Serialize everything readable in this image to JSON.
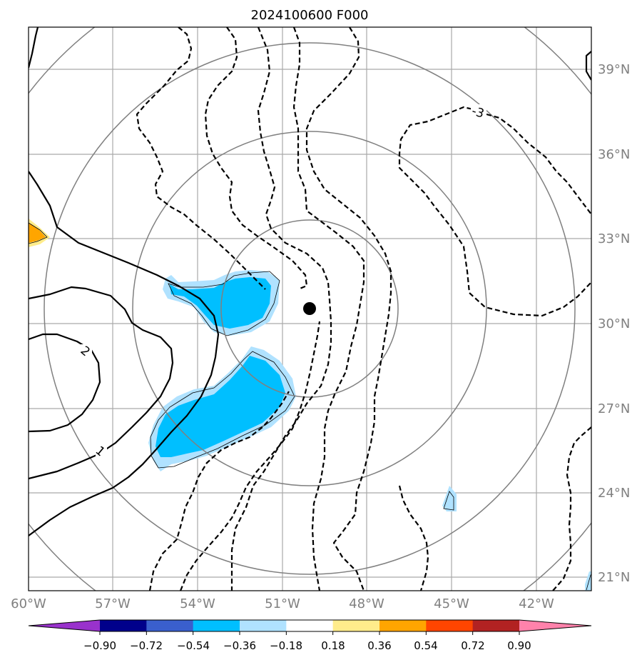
{
  "title": "2024100600 F000",
  "map": {
    "lon_ticks": [
      "60°W",
      "57°W",
      "54°W",
      "51°W",
      "48°W",
      "45°W",
      "42°W"
    ],
    "lat_ticks": [
      "39°N",
      "36°N",
      "33°N",
      "30°N",
      "27°N",
      "24°N",
      "21°N"
    ],
    "center_marker": {
      "lon": -50.0,
      "lat": 30.5
    },
    "contour_labels": [
      {
        "text": "-3",
        "note": "dashed contour, upper right"
      },
      {
        "text": "2",
        "note": "solid contour, left"
      },
      {
        "text": "1",
        "note": "solid contour, lower left"
      }
    ]
  },
  "colorbar": {
    "ticks": [
      "−0.90",
      "−0.72",
      "−0.54",
      "−0.36",
      "−0.18",
      "0.18",
      "0.36",
      "0.54",
      "0.72",
      "0.90"
    ],
    "colors": [
      "#9932cc",
      "#00008b",
      "#3a5fcd",
      "#00bfff",
      "#b0e2ff",
      "#ffffff",
      "#ffec8b",
      "#ffa500",
      "#ff4500",
      "#b22222",
      "#ff82ab"
    ]
  }
}
